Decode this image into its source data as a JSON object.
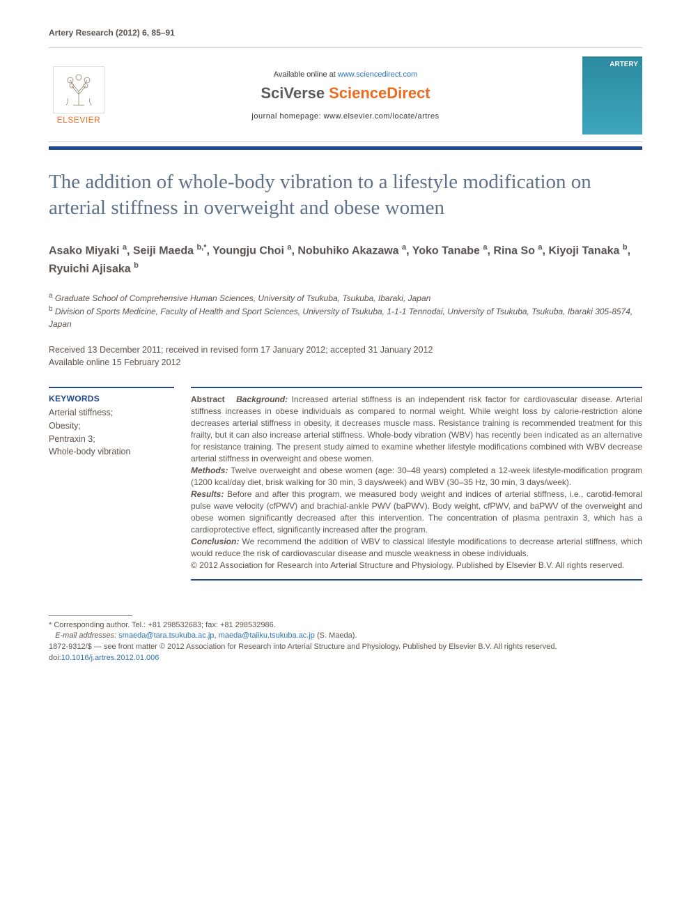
{
  "colors": {
    "brand_blue": "#1e478e",
    "title_blue": "#5e7189",
    "text_brown": "#5e5248",
    "header_brown": "#59524e",
    "link_blue": "#2a72b5",
    "orange": "#ec6c1f",
    "cover_teal": "#2b8aa0"
  },
  "citation": "Artery Research (2012) 6, 85–91",
  "header": {
    "available_text": "Available online at ",
    "available_url": "www.sciencedirect.com",
    "sciverse_left": "SciVerse",
    "sciverse_right": "ScienceDirect",
    "homepage": "journal homepage: www.elsevier.com/locate/artres",
    "elsevier_label": "ELSEVIER",
    "cover_label": "ARTERY"
  },
  "title": "The addition of whole-body vibration to a lifestyle modification on arterial stiffness in overweight and obese women",
  "authors_html": "Asako Miyaki <sup>a</sup>, Seiji Maeda <sup>b,*</sup>, Youngju Choi <sup>a</sup>, Nobuhiko Akazawa <sup>a</sup>, Yoko Tanabe <sup>a</sup>, Rina So <sup>a</sup>, Kiyoji Tanaka <sup>b</sup>, Ryuichi Ajisaka <sup>b</sup>",
  "affiliations": {
    "a": "Graduate School of Comprehensive Human Sciences, University of Tsukuba, Tsukuba, Ibaraki, Japan",
    "b": "Division of Sports Medicine, Faculty of Health and Sport Sciences, University of Tsukuba, 1-1-1 Tennodai, University of Tsukuba, Tsukuba, Ibaraki 305-8574, Japan"
  },
  "dates": {
    "line1": "Received 13 December 2011; received in revised form 17 January 2012; accepted 31 January 2012",
    "line2": "Available online 15 February 2012"
  },
  "keywords": {
    "heading": "KEYWORDS",
    "items": "Arterial stiffness;\nObesity;\nPentraxin 3;\nWhole-body vibration"
  },
  "abstract": {
    "label": "Abstract",
    "background_label": "Background:",
    "background": "Increased arterial stiffness is an independent risk factor for cardiovascular disease. Arterial stiffness increases in obese individuals as compared to normal weight. While weight loss by calorie-restriction alone decreases arterial stiffness in obesity, it decreases muscle mass. Resistance training is recommended treatment for this frailty, but it can also increase arterial stiffness. Whole-body vibration (WBV) has recently been indicated as an alternative for resistance training. The present study aimed to examine whether lifestyle modifications combined with WBV decrease arterial stiffness in overweight and obese women.",
    "methods_label": "Methods:",
    "methods": "Twelve overweight and obese women (age: 30–48 years) completed a 12-week lifestyle-modification program (1200 kcal/day diet, brisk walking for 30 min, 3 days/week) and WBV (30–35 Hz, 30 min, 3 days/week).",
    "results_label": "Results:",
    "results": "Before and after this program, we measured body weight and indices of arterial stiffness, i.e., carotid-femoral pulse wave velocity (cfPWV) and brachial-ankle PWV (baPWV). Body weight, cfPWV, and baPWV of the overweight and obese women significantly decreased after this intervention. The concentration of plasma pentraxin 3, which has a cardioprotective effect, significantly increased after the program.",
    "conclusion_label": "Conclusion:",
    "conclusion": "We recommend the addition of WBV to classical lifestyle modifications to decrease arterial stiffness, which would reduce the risk of cardiovascular disease and muscle weakness in obese individuals.",
    "copyright": "© 2012 Association for Research into Arterial Structure and Physiology. Published by Elsevier B.V. All rights reserved."
  },
  "footnotes": {
    "corresponding": "* Corresponding author. Tel.: +81 298532683; fax: +81 298532986.",
    "email_label": "E-mail addresses:",
    "email1": "smaeda@tara.tsukuba.ac.jp",
    "email2": "maeda@taiiku.tsukuba.ac.jp",
    "email_name": "(S. Maeda).",
    "issn_line": "1872-9312/$ — see front matter © 2012 Association for Research into Arterial Structure and Physiology. Published by Elsevier B.V. All rights reserved.",
    "doi_label": "doi:",
    "doi": "10.1016/j.artres.2012.01.006"
  }
}
